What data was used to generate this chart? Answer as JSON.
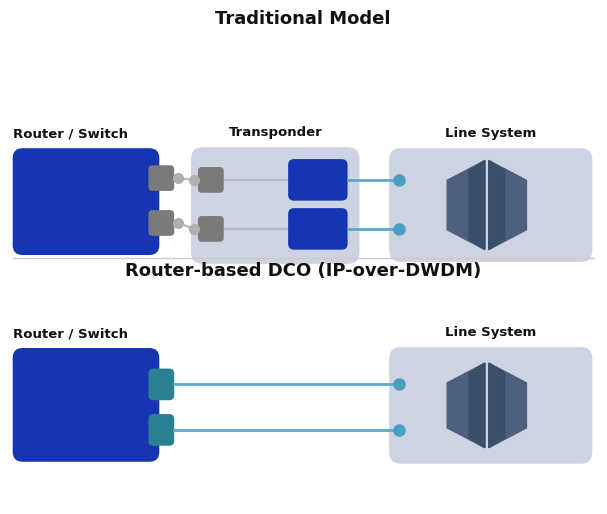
{
  "title1": "Traditional Model",
  "title2": "Router-based DCO (IP-over-DWDM)",
  "label_router": "Router / Switch",
  "label_transponder": "Transponder",
  "label_line_system": "Line System",
  "colors": {
    "dark_blue": "#1535b5",
    "steel_blue": "#4a6fa5",
    "dark_steel": "#4e6080",
    "gray_box": "#7a7a7a",
    "light_gray_bg": "#cdd3e0",
    "teal": "#2a8090",
    "connector_line": "#5aaad0",
    "connector_dot": "#4a9fc0",
    "gray_line": "#b0b8c4",
    "gray_dot": "#b0b0b0",
    "white": "#ffffff",
    "bg": "#ffffff"
  },
  "figsize": [
    6.07,
    5.14
  ],
  "dpi": 100
}
